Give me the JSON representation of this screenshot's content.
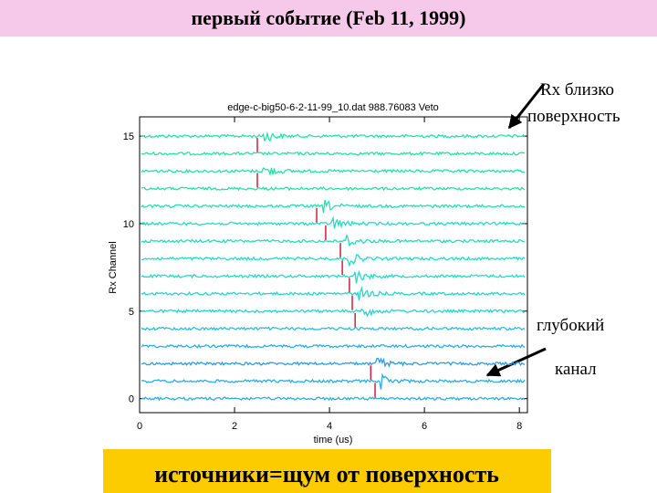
{
  "header": {
    "title": "первый событие (Feb 11, 1999)"
  },
  "chart_data": {
    "type": "seismogram",
    "title": "edge-c-big50-6-2-11-99_10.dat   988.76083    Veto",
    "xlabel": "time (us)",
    "ylabel": "Rx Channel",
    "xlim": [
      0,
      8.17
    ],
    "xticks": [
      0,
      2,
      4,
      6,
      8
    ],
    "ylim": [
      -0.8,
      16.1
    ],
    "yticks": [
      0,
      5,
      10,
      15
    ],
    "pick_color": "#d0203a",
    "channels": [
      {
        "channel": 15,
        "color": "#24e2a6",
        "pick": 2.48
      },
      {
        "channel": 14,
        "color": "#24e2a6",
        "pick": null
      },
      {
        "channel": 13,
        "color": "#24e2a6",
        "pick": 2.48
      },
      {
        "channel": 12,
        "color": "#24e2a6",
        "pick": null
      },
      {
        "channel": 11,
        "color": "#24e2b2",
        "pick": 3.73
      },
      {
        "channel": 10,
        "color": "#24dcc0",
        "pick": 3.92
      },
      {
        "channel": 9,
        "color": "#24dcc0",
        "pick": 4.23
      },
      {
        "channel": 8,
        "color": "#24dcc8",
        "pick": 4.27
      },
      {
        "channel": 7,
        "color": "#24dcc8",
        "pick": 4.42
      },
      {
        "channel": 6,
        "color": "#24d6cc",
        "pick": 4.48
      },
      {
        "channel": 5,
        "color": "#24d6cc",
        "pick": 4.54
      },
      {
        "channel": 4,
        "color": "#28c0dc",
        "pick": null
      },
      {
        "channel": 3,
        "color": "#2aaee6",
        "pick": null
      },
      {
        "channel": 2,
        "color": "#2a9ee6",
        "pick": 4.87
      },
      {
        "channel": 1,
        "color": "#2aaee6",
        "pick": 4.96
      },
      {
        "channel": 0,
        "color": "#2ab0e0",
        "pick": null
      }
    ]
  },
  "annotations": [
    {
      "lines": [
        "Rx близко",
        "поверхность"
      ]
    },
    {
      "lines": [
        "глубокий",
        "канал"
      ]
    }
  ],
  "footer": "источники=щум от поверхность"
}
